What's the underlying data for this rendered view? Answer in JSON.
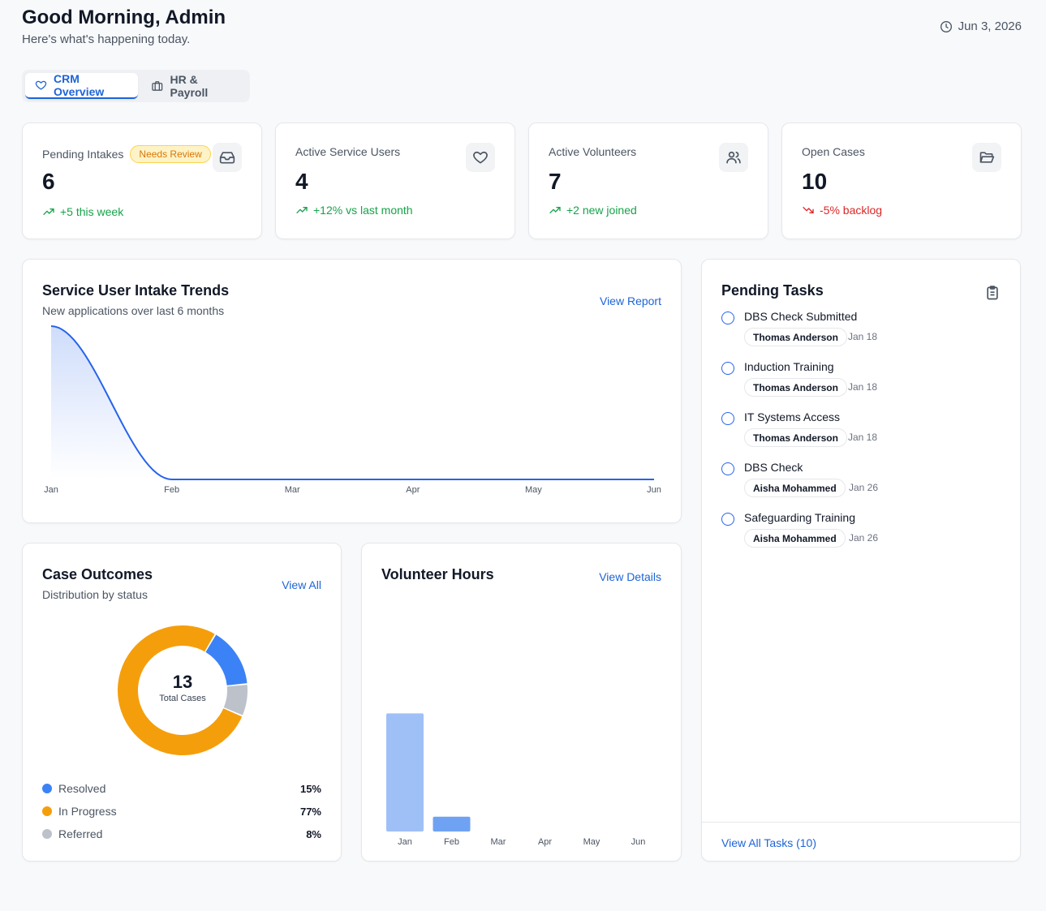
{
  "header": {
    "greeting": "Good Morning, Admin",
    "subtitle": "Here's what's happening today.",
    "date": "Jun 3, 2026",
    "date_icon": "clock-icon"
  },
  "tabs": [
    {
      "label": "CRM Overview",
      "icon": "heart-icon",
      "active": true
    },
    {
      "label": "HR & Payroll",
      "icon": "briefcase-icon",
      "active": false
    }
  ],
  "stats": [
    {
      "label": "Pending Intakes",
      "badge": "Needs Review",
      "value": "6",
      "trend": "+5 this week",
      "direction": "up",
      "icon": "inbox-icon"
    },
    {
      "label": "Active Service Users",
      "value": "4",
      "trend": "+12% vs last month",
      "direction": "up",
      "icon": "heart-icon"
    },
    {
      "label": "Active Volunteers",
      "value": "7",
      "trend": "+2 new joined",
      "direction": "up",
      "icon": "users-icon"
    },
    {
      "label": "Open Cases",
      "value": "10",
      "trend": "-5% backlog",
      "direction": "down",
      "icon": "folder-icon"
    }
  ],
  "intake_trends": {
    "title": "Service User Intake Trends",
    "subtitle": "New applications over last 6 months",
    "link": "View Report"
  },
  "case_outcomes": {
    "title": "Case Outcomes",
    "subtitle": "Distribution by status",
    "link": "View All",
    "total": "13",
    "total_label": "Total Cases",
    "legend": [
      {
        "label": "Resolved",
        "pct": "15%",
        "color": "#3b82f6"
      },
      {
        "label": "In Progress",
        "pct": "77%",
        "color": "#f59e0b"
      },
      {
        "label": "Referred",
        "pct": "8%",
        "color": "#bcc1ca"
      }
    ]
  },
  "volunteer_hours": {
    "title": "Volunteer Hours",
    "link": "View Details"
  },
  "pending_tasks": {
    "title": "Pending Tasks",
    "icon": "clipboard-icon",
    "tasks": [
      {
        "title": "DBS Check Submitted",
        "person": "Thomas Anderson",
        "date": "Jan 18"
      },
      {
        "title": "Induction Training",
        "person": "Thomas Anderson",
        "date": "Jan 18"
      },
      {
        "title": "IT Systems Access",
        "person": "Thomas Anderson",
        "date": "Jan 18"
      },
      {
        "title": "DBS Check",
        "person": "Aisha Mohammed",
        "date": "Jan 26"
      },
      {
        "title": "Safeguarding Training",
        "person": "Aisha Mohammed",
        "date": "Jan 26"
      }
    ],
    "view_all": "View All Tasks (10)"
  },
  "colors": {
    "accent": "#1d64d8",
    "line": "#2563eb",
    "bar_jan": "#9fc0f7",
    "bar_feb": "#6fa2f3",
    "up": "#16a34a",
    "down": "#dc2626"
  },
  "chart_data": [
    {
      "type": "area",
      "title": "Service User Intake Trends",
      "subtitle": "New applications over last 6 months",
      "categories": [
        "Jan",
        "Feb",
        "Mar",
        "Apr",
        "May",
        "Jun"
      ],
      "values": [
        1,
        0,
        0,
        0,
        0,
        0
      ],
      "ylim": [
        0,
        1
      ],
      "grid": false
    },
    {
      "type": "pie",
      "title": "Case Outcomes",
      "labels": [
        "Resolved",
        "Referred",
        "In Progress"
      ],
      "values": [
        15,
        8,
        77
      ],
      "total": 13
    },
    {
      "type": "bar",
      "title": "Volunteer Hours",
      "categories": [
        "Jan",
        "Feb",
        "Mar",
        "Apr",
        "May",
        "Jun"
      ],
      "values": [
        8,
        1,
        0,
        0,
        0,
        0
      ],
      "ylim": [
        0,
        10
      ],
      "grid": false
    }
  ]
}
